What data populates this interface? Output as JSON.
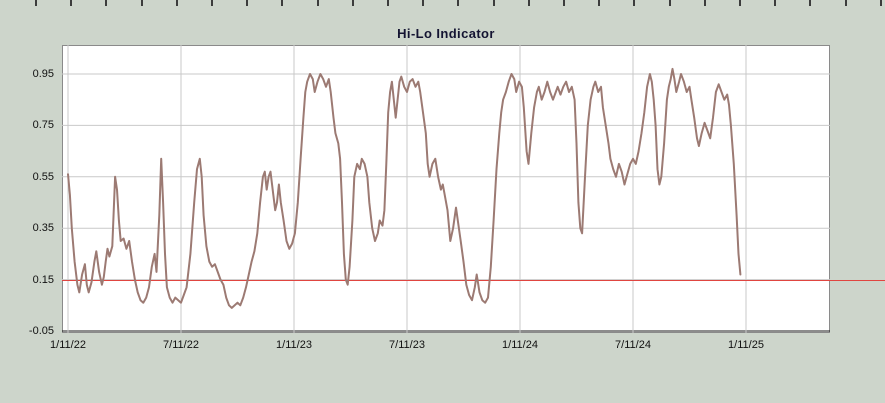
{
  "colors": {
    "page_background": "#cdd5cb",
    "plot_background": "#ffffff",
    "grid": "#c9c9c9",
    "axis": "#1a1a1a",
    "frame_border": "#8a8a8a",
    "title_text": "#141432",
    "label_text": "#111111",
    "series_line": "#9c7a73",
    "threshold_line": "#e04540",
    "ruler_tick": "#3c3c3c"
  },
  "chart_data": {
    "type": "line",
    "title": "Hi-Lo Indicator",
    "grid": true,
    "legend": "none",
    "x_axis": {
      "tick_labels": [
        "1/11/22",
        "7/11/22",
        "1/11/23",
        "7/11/23",
        "1/11/24",
        "7/11/24",
        "1/11/25"
      ],
      "months_per_tick": 6,
      "x_unit": "months since first tick"
    },
    "y_axis": {
      "tick_labels": [
        "0.95",
        "0.75",
        "0.55",
        "0.35",
        "0.15",
        "-0.05"
      ],
      "ticks": [
        0.95,
        0.75,
        0.55,
        0.35,
        0.15,
        -0.05
      ],
      "ylim": [
        -0.05,
        1.06
      ]
    },
    "threshold_line": {
      "value": 0.15,
      "color": "#e04540"
    },
    "series": [
      {
        "name": "Hi-Lo",
        "color": "#9c7a73",
        "points": [
          [
            0,
            0.56
          ],
          [
            0.1,
            0.48
          ],
          [
            0.2,
            0.35
          ],
          [
            0.35,
            0.22
          ],
          [
            0.5,
            0.13
          ],
          [
            0.6,
            0.1
          ],
          [
            0.75,
            0.17
          ],
          [
            0.9,
            0.21
          ],
          [
            1,
            0.13
          ],
          [
            1.1,
            0.1
          ],
          [
            1.25,
            0.14
          ],
          [
            1.4,
            0.22
          ],
          [
            1.5,
            0.26
          ],
          [
            1.65,
            0.18
          ],
          [
            1.8,
            0.13
          ],
          [
            1.9,
            0.16
          ],
          [
            2,
            0.22
          ],
          [
            2.1,
            0.27
          ],
          [
            2.2,
            0.24
          ],
          [
            2.35,
            0.28
          ],
          [
            2.5,
            0.55
          ],
          [
            2.6,
            0.5
          ],
          [
            2.7,
            0.38
          ],
          [
            2.8,
            0.3
          ],
          [
            2.95,
            0.31
          ],
          [
            3.1,
            0.27
          ],
          [
            3.25,
            0.3
          ],
          [
            3.4,
            0.22
          ],
          [
            3.55,
            0.15
          ],
          [
            3.7,
            0.1
          ],
          [
            3.85,
            0.07
          ],
          [
            4,
            0.06
          ],
          [
            4.15,
            0.08
          ],
          [
            4.3,
            0.12
          ],
          [
            4.45,
            0.2
          ],
          [
            4.6,
            0.25
          ],
          [
            4.7,
            0.18
          ],
          [
            4.85,
            0.4
          ],
          [
            4.95,
            0.62
          ],
          [
            5.05,
            0.45
          ],
          [
            5.15,
            0.25
          ],
          [
            5.25,
            0.12
          ],
          [
            5.4,
            0.08
          ],
          [
            5.55,
            0.06
          ],
          [
            5.7,
            0.08
          ],
          [
            5.85,
            0.07
          ],
          [
            6,
            0.06
          ],
          [
            6.15,
            0.09
          ],
          [
            6.3,
            0.12
          ],
          [
            6.5,
            0.25
          ],
          [
            6.7,
            0.45
          ],
          [
            6.85,
            0.58
          ],
          [
            7,
            0.62
          ],
          [
            7.1,
            0.55
          ],
          [
            7.2,
            0.4
          ],
          [
            7.35,
            0.28
          ],
          [
            7.5,
            0.22
          ],
          [
            7.65,
            0.2
          ],
          [
            7.8,
            0.21
          ],
          [
            7.95,
            0.18
          ],
          [
            8.1,
            0.15
          ],
          [
            8.25,
            0.13
          ],
          [
            8.4,
            0.08
          ],
          [
            8.55,
            0.05
          ],
          [
            8.7,
            0.04
          ],
          [
            8.85,
            0.05
          ],
          [
            9,
            0.06
          ],
          [
            9.15,
            0.05
          ],
          [
            9.3,
            0.08
          ],
          [
            9.45,
            0.12
          ],
          [
            9.6,
            0.17
          ],
          [
            9.75,
            0.22
          ],
          [
            9.9,
            0.26
          ],
          [
            10.05,
            0.33
          ],
          [
            10.2,
            0.45
          ],
          [
            10.35,
            0.55
          ],
          [
            10.45,
            0.57
          ],
          [
            10.55,
            0.5
          ],
          [
            10.65,
            0.55
          ],
          [
            10.75,
            0.57
          ],
          [
            10.9,
            0.48
          ],
          [
            11,
            0.42
          ],
          [
            11.1,
            0.45
          ],
          [
            11.2,
            0.52
          ],
          [
            11.3,
            0.45
          ],
          [
            11.45,
            0.38
          ],
          [
            11.6,
            0.3
          ],
          [
            11.75,
            0.27
          ],
          [
            11.9,
            0.29
          ],
          [
            12.05,
            0.33
          ],
          [
            12.2,
            0.45
          ],
          [
            12.35,
            0.62
          ],
          [
            12.5,
            0.78
          ],
          [
            12.6,
            0.88
          ],
          [
            12.7,
            0.92
          ],
          [
            12.85,
            0.95
          ],
          [
            13,
            0.93
          ],
          [
            13.1,
            0.88
          ],
          [
            13.25,
            0.92
          ],
          [
            13.4,
            0.95
          ],
          [
            13.55,
            0.93
          ],
          [
            13.7,
            0.9
          ],
          [
            13.85,
            0.93
          ],
          [
            13.95,
            0.88
          ],
          [
            14.1,
            0.78
          ],
          [
            14.2,
            0.72
          ],
          [
            14.35,
            0.68
          ],
          [
            14.45,
            0.62
          ],
          [
            14.55,
            0.45
          ],
          [
            14.65,
            0.25
          ],
          [
            14.75,
            0.15
          ],
          [
            14.85,
            0.13
          ],
          [
            14.95,
            0.2
          ],
          [
            15.1,
            0.38
          ],
          [
            15.2,
            0.55
          ],
          [
            15.35,
            0.6
          ],
          [
            15.5,
            0.58
          ],
          [
            15.6,
            0.62
          ],
          [
            15.75,
            0.6
          ],
          [
            15.9,
            0.55
          ],
          [
            16,
            0.45
          ],
          [
            16.15,
            0.35
          ],
          [
            16.3,
            0.3
          ],
          [
            16.45,
            0.33
          ],
          [
            16.55,
            0.38
          ],
          [
            16.7,
            0.36
          ],
          [
            16.8,
            0.42
          ],
          [
            16.9,
            0.6
          ],
          [
            17,
            0.8
          ],
          [
            17.1,
            0.88
          ],
          [
            17.2,
            0.92
          ],
          [
            17.3,
            0.85
          ],
          [
            17.4,
            0.78
          ],
          [
            17.5,
            0.85
          ],
          [
            17.6,
            0.92
          ],
          [
            17.7,
            0.94
          ],
          [
            17.85,
            0.9
          ],
          [
            18,
            0.88
          ],
          [
            18.15,
            0.92
          ],
          [
            18.3,
            0.93
          ],
          [
            18.45,
            0.9
          ],
          [
            18.6,
            0.92
          ],
          [
            18.7,
            0.88
          ],
          [
            18.85,
            0.8
          ],
          [
            19,
            0.72
          ],
          [
            19.1,
            0.6
          ],
          [
            19.2,
            0.55
          ],
          [
            19.35,
            0.6
          ],
          [
            19.5,
            0.62
          ],
          [
            19.65,
            0.55
          ],
          [
            19.8,
            0.5
          ],
          [
            19.9,
            0.52
          ],
          [
            20,
            0.48
          ],
          [
            20.15,
            0.42
          ],
          [
            20.3,
            0.3
          ],
          [
            20.45,
            0.35
          ],
          [
            20.6,
            0.43
          ],
          [
            20.7,
            0.38
          ],
          [
            20.85,
            0.3
          ],
          [
            21,
            0.22
          ],
          [
            21.15,
            0.13
          ],
          [
            21.3,
            0.09
          ],
          [
            21.45,
            0.07
          ],
          [
            21.6,
            0.12
          ],
          [
            21.7,
            0.17
          ],
          [
            21.85,
            0.1
          ],
          [
            22,
            0.07
          ],
          [
            22.15,
            0.06
          ],
          [
            22.3,
            0.08
          ],
          [
            22.45,
            0.2
          ],
          [
            22.6,
            0.38
          ],
          [
            22.75,
            0.58
          ],
          [
            22.9,
            0.72
          ],
          [
            23,
            0.8
          ],
          [
            23.1,
            0.85
          ],
          [
            23.25,
            0.88
          ],
          [
            23.4,
            0.92
          ],
          [
            23.55,
            0.95
          ],
          [
            23.7,
            0.93
          ],
          [
            23.8,
            0.88
          ],
          [
            23.95,
            0.92
          ],
          [
            24.1,
            0.9
          ],
          [
            24.2,
            0.82
          ],
          [
            24.35,
            0.65
          ],
          [
            24.45,
            0.6
          ],
          [
            24.6,
            0.72
          ],
          [
            24.75,
            0.82
          ],
          [
            24.9,
            0.88
          ],
          [
            25,
            0.9
          ],
          [
            25.15,
            0.85
          ],
          [
            25.3,
            0.88
          ],
          [
            25.45,
            0.92
          ],
          [
            25.6,
            0.88
          ],
          [
            25.75,
            0.85
          ],
          [
            25.9,
            0.88
          ],
          [
            26,
            0.9
          ],
          [
            26.15,
            0.87
          ],
          [
            26.3,
            0.9
          ],
          [
            26.45,
            0.92
          ],
          [
            26.6,
            0.88
          ],
          [
            26.75,
            0.9
          ],
          [
            26.9,
            0.85
          ],
          [
            27,
            0.68
          ],
          [
            27.1,
            0.45
          ],
          [
            27.2,
            0.35
          ],
          [
            27.3,
            0.33
          ],
          [
            27.45,
            0.55
          ],
          [
            27.6,
            0.75
          ],
          [
            27.75,
            0.85
          ],
          [
            27.9,
            0.9
          ],
          [
            28,
            0.92
          ],
          [
            28.15,
            0.88
          ],
          [
            28.3,
            0.9
          ],
          [
            28.4,
            0.82
          ],
          [
            28.55,
            0.75
          ],
          [
            28.7,
            0.68
          ],
          [
            28.8,
            0.62
          ],
          [
            28.95,
            0.58
          ],
          [
            29.1,
            0.55
          ],
          [
            29.25,
            0.6
          ],
          [
            29.4,
            0.57
          ],
          [
            29.55,
            0.52
          ],
          [
            29.7,
            0.56
          ],
          [
            29.85,
            0.6
          ],
          [
            30,
            0.62
          ],
          [
            30.15,
            0.6
          ],
          [
            30.3,
            0.65
          ],
          [
            30.45,
            0.72
          ],
          [
            30.6,
            0.8
          ],
          [
            30.75,
            0.9
          ],
          [
            30.9,
            0.95
          ],
          [
            31,
            0.92
          ],
          [
            31.1,
            0.85
          ],
          [
            31.2,
            0.75
          ],
          [
            31.3,
            0.58
          ],
          [
            31.4,
            0.52
          ],
          [
            31.5,
            0.55
          ],
          [
            31.65,
            0.68
          ],
          [
            31.8,
            0.85
          ],
          [
            31.9,
            0.9
          ],
          [
            32,
            0.93
          ],
          [
            32.1,
            0.97
          ],
          [
            32.2,
            0.93
          ],
          [
            32.3,
            0.88
          ],
          [
            32.45,
            0.92
          ],
          [
            32.55,
            0.95
          ],
          [
            32.7,
            0.92
          ],
          [
            32.85,
            0.88
          ],
          [
            33,
            0.9
          ],
          [
            33.1,
            0.85
          ],
          [
            33.25,
            0.78
          ],
          [
            33.4,
            0.7
          ],
          [
            33.5,
            0.67
          ],
          [
            33.65,
            0.72
          ],
          [
            33.8,
            0.76
          ],
          [
            33.95,
            0.73
          ],
          [
            34.1,
            0.7
          ],
          [
            34.25,
            0.78
          ],
          [
            34.4,
            0.88
          ],
          [
            34.55,
            0.91
          ],
          [
            34.7,
            0.88
          ],
          [
            34.85,
            0.85
          ],
          [
            35,
            0.87
          ],
          [
            35.1,
            0.83
          ],
          [
            35.2,
            0.75
          ],
          [
            35.35,
            0.6
          ],
          [
            35.5,
            0.4
          ],
          [
            35.6,
            0.25
          ],
          [
            35.7,
            0.17
          ]
        ]
      }
    ]
  }
}
